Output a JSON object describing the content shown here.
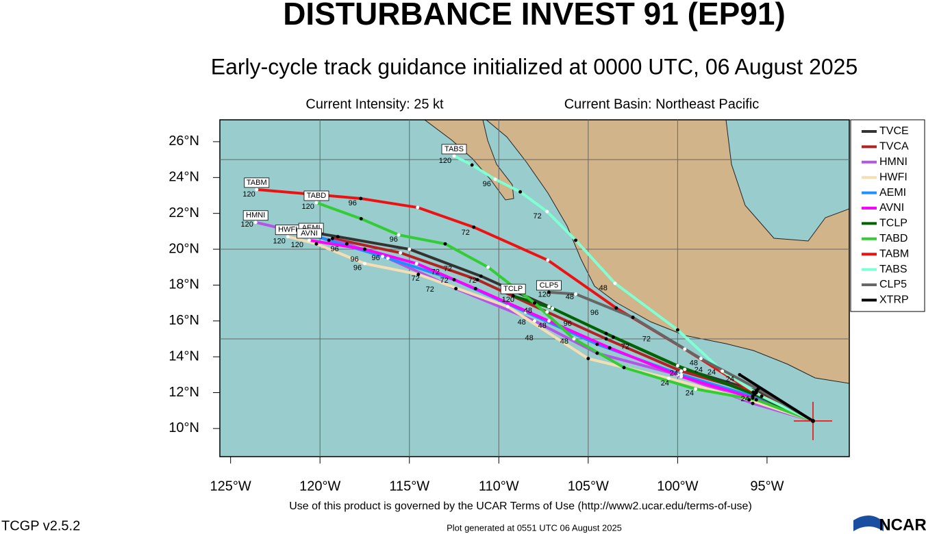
{
  "chart_data": {
    "type": "track",
    "title": "DISTURBANCE INVEST 91 (EP91)",
    "subtitle": "Early-cycle track guidance initialized at 0000 UTC, 06 August 2025",
    "intensity": "Current Intensity: 25 kt",
    "basin": "Current Basin: Northeast Pacific",
    "terms": "Use of this product is governed by the UCAR Terms of Use (http://www2.ucar.edu/terms-of-use)",
    "version": "TCGP v2.5.2",
    "generated": "Plot generated at 0551 UTC   06 August 2025",
    "logo": "NCAR",
    "xlim": [
      -125.6,
      -90.4
    ],
    "ylim": [
      8.43,
      27.22
    ],
    "xticks": [
      {
        "value": -125,
        "label": "125°W"
      },
      {
        "value": -120,
        "label": "120°W"
      },
      {
        "value": -115,
        "label": "115°W"
      },
      {
        "value": -110,
        "label": "110°W"
      },
      {
        "value": -105,
        "label": "105°W"
      },
      {
        "value": -100,
        "label": "100°W"
      },
      {
        "value": -95,
        "label": "95°W"
      }
    ],
    "yticks": [
      {
        "value": 10,
        "label": "10°N"
      },
      {
        "value": 12,
        "label": "12°N"
      },
      {
        "value": 14,
        "label": "14°N"
      },
      {
        "value": 16,
        "label": "16°N"
      },
      {
        "value": 18,
        "label": "18°N"
      },
      {
        "value": 20,
        "label": "20°N"
      },
      {
        "value": 22,
        "label": "22°N"
      },
      {
        "value": 24,
        "label": "24°N"
      },
      {
        "value": 26,
        "label": "26°N"
      }
    ],
    "grid_lon": [
      -120,
      -115,
      -110,
      -105,
      -100
    ],
    "grid_lat": [
      15,
      20,
      25
    ],
    "origin": {
      "x": -92.43,
      "y": 10.42
    },
    "series": [
      {
        "name": "TVCE",
        "color": "#333333",
        "x": [
          -92.43,
          -95.6,
          -99.6,
          -103.6,
          -107.2,
          -111,
          -115,
          -119,
          -120.2
        ],
        "values": [
          10.42,
          12.1,
          13.3,
          15.1,
          16.8,
          18.5,
          20,
          20.7,
          20.9
        ]
      },
      {
        "name": "TVCA",
        "color": "#b22222",
        "x": [
          -92.43,
          -95.6,
          -99.8,
          -104,
          -107.3,
          -111.2,
          -115.5,
          -119.3
        ],
        "values": [
          10.42,
          12,
          13.2,
          15,
          16.5,
          18.3,
          19.8,
          20.6
        ]
      },
      {
        "name": "HMNI",
        "color": "#b554e8",
        "x": [
          -92.43,
          -95.8,
          -100,
          -104.5,
          -108,
          -112.4,
          -116.2,
          -118.5,
          -123.6
        ],
        "values": [
          10.42,
          11.4,
          13,
          14.2,
          16,
          17.8,
          19.5,
          20.3,
          21.5
        ],
        "boxed": true
      },
      {
        "name": "HWFI",
        "color": "#f5deb3",
        "x": [
          -92.43,
          -96,
          -100.5,
          -105,
          -109.5,
          -114.5,
          -117.5,
          -120.2,
          -121.8
        ],
        "values": [
          10.42,
          11.6,
          12.8,
          13.9,
          16.8,
          18.6,
          19.2,
          20.3,
          20.7
        ],
        "boxed": true
      },
      {
        "name": "AEMI",
        "color": "#1e90ff",
        "x": [
          -92.43,
          -95.8,
          -99.8,
          -104.5,
          -108.5,
          -112.5,
          -116.5,
          -119.5,
          -120.5
        ],
        "values": [
          10.42,
          11.8,
          13,
          14.7,
          16.5,
          18.3,
          19.6,
          20.5,
          20.8
        ],
        "boxed": true
      },
      {
        "name": "AVNI",
        "color": "#ff00ff",
        "x": [
          -92.43,
          -95.8,
          -99.8,
          -103.8,
          -107.2,
          -111.3,
          -114.6,
          -117.5,
          -120.6
        ],
        "values": [
          10.42,
          11.7,
          12.9,
          14.5,
          16,
          17.8,
          19.2,
          20,
          20.5
        ],
        "boxed": true
      },
      {
        "name": "TCLP",
        "color": "#006400",
        "x": [
          -92.43,
          -95.7,
          -100,
          -104,
          -107,
          -109.2
        ],
        "values": [
          10.42,
          11.9,
          13.5,
          15.3,
          16.7,
          17.4
        ],
        "boxed": true
      },
      {
        "name": "TABD",
        "color": "#32cd32",
        "x": [
          -92.43,
          -95.6,
          -99,
          -103,
          -105.8,
          -108,
          -110.6,
          -113,
          -115.6,
          -117.7,
          -120.2
        ],
        "values": [
          10.42,
          11.6,
          12.2,
          13.4,
          15,
          17,
          19,
          20.3,
          20.8,
          21.7,
          22.6
        ],
        "boxed": true
      },
      {
        "name": "TABM",
        "color": "#ee1111",
        "x": [
          -92.43,
          -95.77,
          -99.6,
          -103.43,
          -107.26,
          -111.4,
          -114.54,
          -117.72,
          -123.54
        ],
        "values": [
          10.42,
          12.03,
          14.43,
          16.72,
          19.39,
          21.23,
          22.33,
          22.83,
          23.33
        ],
        "boxed": true
      },
      {
        "name": "TABS",
        "color": "#7fffd4",
        "x": [
          -92.43,
          -95.3,
          -97.5,
          -100,
          -103.5,
          -105.7,
          -107.3,
          -108.8,
          -110.2,
          -111.5,
          -112.5
        ],
        "values": [
          10.42,
          11.8,
          13.2,
          15.5,
          18.1,
          20.5,
          22.1,
          23.2,
          23.9,
          24.7,
          25.2
        ],
        "boxed": true
      },
      {
        "name": "CLP5",
        "color": "#666666",
        "x": [
          -92.43,
          -95.5,
          -98.7,
          -102.5,
          -105.7,
          -107.2
        ],
        "values": [
          10.42,
          12.2,
          13.9,
          16.2,
          17.5,
          17.6
        ],
        "boxed": true
      },
      {
        "name": "XTRP",
        "color": "#000000",
        "x": [
          -92.43,
          -96.53
        ],
        "values": [
          10.42,
          13.0
        ]
      }
    ],
    "annotations": [
      {
        "text": "120",
        "x": -113.0,
        "y": 24.93
      },
      {
        "text": "96",
        "x": -110.67,
        "y": 23.63
      },
      {
        "text": "120",
        "x": -123.97,
        "y": 23.06
      },
      {
        "text": "96",
        "x": -118.18,
        "y": 22.56
      },
      {
        "text": "120",
        "x": -120.67,
        "y": 22.37
      },
      {
        "text": "72",
        "x": -111.86,
        "y": 20.92
      },
      {
        "text": "72",
        "x": -107.84,
        "y": 21.84
      },
      {
        "text": "120",
        "x": -124.08,
        "y": 21.38
      },
      {
        "text": "96",
        "x": -115.88,
        "y": 20.54
      },
      {
        "text": "120",
        "x": -122.28,
        "y": 20.43
      },
      {
        "text": "120",
        "x": -121.28,
        "y": 20.23
      },
      {
        "text": "96",
        "x": -119.18,
        "y": 20.0
      },
      {
        "text": "96",
        "x": -118.07,
        "y": 19.43
      },
      {
        "text": "96",
        "x": -116.88,
        "y": 19.51
      },
      {
        "text": "96",
        "x": -117.9,
        "y": 18.94
      },
      {
        "text": "72",
        "x": -112.85,
        "y": 18.9
      },
      {
        "text": "72",
        "x": -113.54,
        "y": 18.71
      },
      {
        "text": "72",
        "x": -111.48,
        "y": 18.25
      },
      {
        "text": "72",
        "x": -114.66,
        "y": 18.36
      },
      {
        "text": "72",
        "x": -113.05,
        "y": 18.25
      },
      {
        "text": "72",
        "x": -113.85,
        "y": 17.75
      },
      {
        "text": "48",
        "x": -104.16,
        "y": 17.83
      },
      {
        "text": "48",
        "x": -106.03,
        "y": 17.33
      },
      {
        "text": "120",
        "x": -109.48,
        "y": 17.18
      },
      {
        "text": "120",
        "x": -107.45,
        "y": 17.45
      },
      {
        "text": "48",
        "x": -108.37,
        "y": 16.57
      },
      {
        "text": "96",
        "x": -104.65,
        "y": 16.45
      },
      {
        "text": "48",
        "x": -108.72,
        "y": 15.92
      },
      {
        "text": "48",
        "x": -107.57,
        "y": 15.73
      },
      {
        "text": "96",
        "x": -106.15,
        "y": 15.84
      },
      {
        "text": "48",
        "x": -108.3,
        "y": 15.04
      },
      {
        "text": "48",
        "x": -106.34,
        "y": 14.85
      },
      {
        "text": "72",
        "x": -101.74,
        "y": 14.97
      },
      {
        "text": "72",
        "x": -102.93,
        "y": 14.55
      },
      {
        "text": "48",
        "x": -99.1,
        "y": 13.63
      },
      {
        "text": "24",
        "x": -98.83,
        "y": 13.25
      },
      {
        "text": "24",
        "x": -98.1,
        "y": 13.13
      },
      {
        "text": "24",
        "x": -100.21,
        "y": 13.06
      },
      {
        "text": "24",
        "x": -97.07,
        "y": 12.75
      },
      {
        "text": "24",
        "x": -100.71,
        "y": 12.52
      },
      {
        "text": "24",
        "x": -99.33,
        "y": 11.95
      },
      {
        "text": "24",
        "x": -96.23,
        "y": 11.64
      }
    ]
  }
}
